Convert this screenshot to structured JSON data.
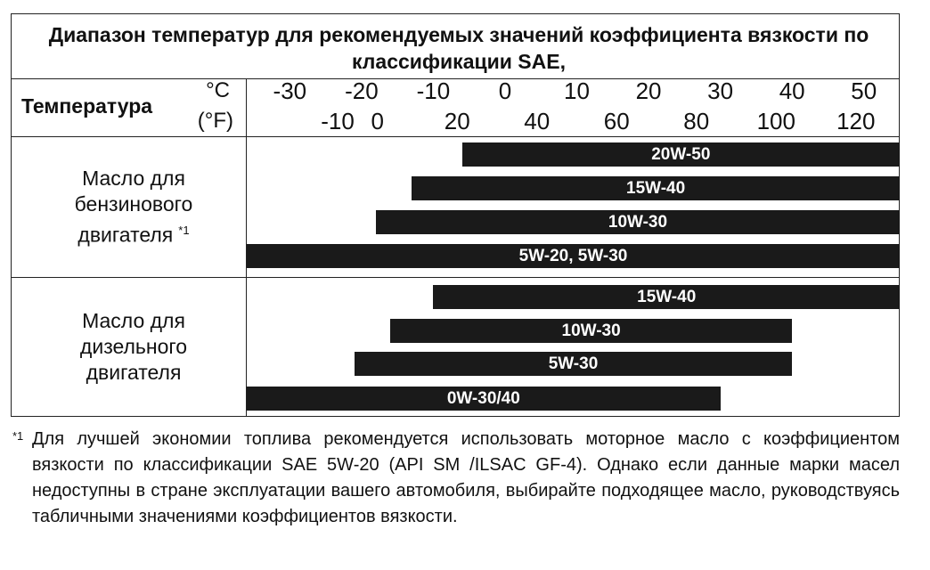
{
  "title": "Диапазон температур для рекомендуемых значений коэффициента вязкости по классификации SAE,",
  "header": {
    "label": "Температура",
    "celsius_unit": "°C",
    "fahrenheit_unit": "(°F)"
  },
  "scale": {
    "xlim": [
      -36,
      55
    ],
    "celsius_ticks": [
      -30,
      -20,
      -10,
      0,
      10,
      20,
      30,
      40,
      50
    ],
    "fahrenheit_ticks": [
      -10,
      0,
      20,
      40,
      60,
      80,
      100,
      120
    ]
  },
  "groups": [
    {
      "label": "Масло для бензинового двигателя",
      "note_mark": "*1",
      "bars": [
        {
          "label": "20W-50",
          "range": [
            -6,
            55
          ]
        },
        {
          "label": "15W-40",
          "range": [
            -13,
            55
          ]
        },
        {
          "label": "10W-30",
          "range": [
            -18,
            55
          ]
        },
        {
          "label": "5W-20, 5W-30",
          "range": [
            -36,
            55
          ]
        }
      ]
    },
    {
      "label": "Масло для дизельного двигателя",
      "bars": [
        {
          "label": "15W-40",
          "range": [
            -10,
            55
          ]
        },
        {
          "label": "10W-30",
          "range": [
            -16,
            40
          ]
        },
        {
          "label": "5W-30",
          "range": [
            -21,
            40
          ]
        },
        {
          "label": "0W-30/40",
          "range": [
            -36,
            30
          ]
        }
      ]
    }
  ],
  "footnote": {
    "mark": "*1",
    "text": "Для лучшей экономии топлива рекомендуется использовать моторное масло с коэффициентом вязкости по классификации SAE 5W-20 (API SM /ILSAC GF-4). Однако если данные марки масел недоступны в стране эксплуатации вашего автомобиля, выбирайте подходящее масло, руководствуясь табличными значениями коэффициентов вязкости."
  }
}
